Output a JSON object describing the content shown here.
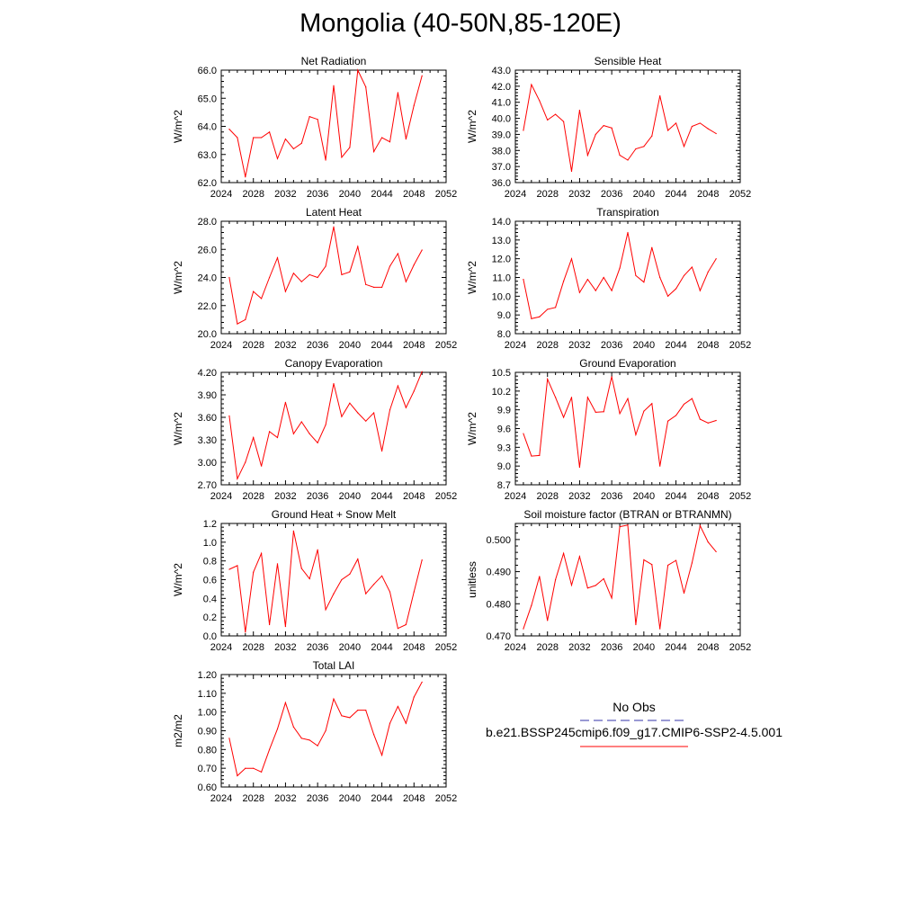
{
  "title": "Mongolia (40-50N,85-120E)",
  "colors": {
    "series": "#ff0000",
    "obs": "#3333aa",
    "axis": "#000000"
  },
  "legend": {
    "obs_label": "No Obs",
    "case_label": "b.e21.BSSP245cmip6.f09_g17.CMIP6-SSP2-4.5.001"
  },
  "chart_data": [
    {
      "type": "line",
      "title": "Net Radiation",
      "ylabel": "W/m^2",
      "xlim": [
        2024,
        2052
      ],
      "xticks": [
        "2024",
        "2028",
        "2032",
        "2036",
        "2040",
        "2044",
        "2048",
        "2052"
      ],
      "ylim": [
        62.0,
        66.0
      ],
      "yticks": [
        "62.0",
        "63.0",
        "64.0",
        "65.0",
        "66.0"
      ],
      "series": [
        {
          "x": [
            2025,
            2026,
            2027,
            2028,
            2029,
            2030,
            2031,
            2032,
            2033,
            2034,
            2035,
            2036,
            2037,
            2038,
            2039,
            2040,
            2041,
            2042,
            2043,
            2044,
            2045,
            2046,
            2047,
            2048,
            2049
          ],
          "values": [
            63.9,
            63.6,
            62.2,
            63.6,
            63.6,
            63.8,
            62.85,
            63.55,
            63.2,
            63.4,
            64.35,
            64.25,
            62.8,
            65.45,
            62.9,
            63.25,
            66.0,
            65.4,
            63.1,
            63.6,
            63.45,
            65.2,
            63.55,
            64.75,
            65.8
          ]
        }
      ]
    },
    {
      "type": "line",
      "title": "Sensible Heat",
      "ylabel": "W/m^2",
      "xlim": [
        2024,
        2052
      ],
      "xticks": [
        "2024",
        "2028",
        "2032",
        "2036",
        "2040",
        "2044",
        "2048",
        "2052"
      ],
      "ylim": [
        36.0,
        43.0
      ],
      "yticks": [
        "36.0",
        "37.0",
        "38.0",
        "39.0",
        "40.0",
        "41.0",
        "42.0",
        "43.0"
      ],
      "series": [
        {
          "x": [
            2025,
            2026,
            2027,
            2028,
            2029,
            2030,
            2031,
            2032,
            2033,
            2034,
            2035,
            2036,
            2037,
            2038,
            2039,
            2040,
            2041,
            2042,
            2043,
            2044,
            2045,
            2046,
            2047,
            2048,
            2049
          ],
          "values": [
            39.25,
            42.1,
            41.1,
            39.9,
            40.25,
            39.8,
            36.7,
            40.5,
            37.7,
            39.0,
            39.55,
            39.4,
            37.7,
            37.4,
            38.1,
            38.25,
            38.9,
            41.4,
            39.25,
            39.7,
            38.25,
            39.5,
            39.7,
            39.35,
            39.05
          ]
        }
      ]
    },
    {
      "type": "line",
      "title": "Latent Heat",
      "ylabel": "W/m^2",
      "xlim": [
        2024,
        2052
      ],
      "xticks": [
        "2024",
        "2028",
        "2032",
        "2036",
        "2040",
        "2044",
        "2048",
        "2052"
      ],
      "ylim": [
        20.0,
        28.0
      ],
      "yticks": [
        "20.0",
        "22.0",
        "24.0",
        "26.0",
        "28.0"
      ],
      "series": [
        {
          "x": [
            2025,
            2026,
            2027,
            2028,
            2029,
            2030,
            2031,
            2032,
            2033,
            2034,
            2035,
            2036,
            2037,
            2038,
            2039,
            2040,
            2041,
            2042,
            2043,
            2044,
            2045,
            2046,
            2047,
            2048,
            2049
          ],
          "values": [
            24.0,
            20.7,
            21.0,
            23.0,
            22.5,
            24.0,
            25.4,
            23.0,
            24.3,
            23.7,
            24.2,
            24.0,
            24.8,
            27.6,
            24.2,
            24.4,
            26.2,
            23.5,
            23.3,
            23.3,
            24.8,
            25.7,
            23.7,
            24.9,
            25.95
          ]
        }
      ]
    },
    {
      "type": "line",
      "title": "Transpiration",
      "ylabel": "W/m^2",
      "xlim": [
        2024,
        2052
      ],
      "xticks": [
        "2024",
        "2028",
        "2032",
        "2036",
        "2040",
        "2044",
        "2048",
        "2052"
      ],
      "ylim": [
        8.0,
        14.0
      ],
      "yticks": [
        "8.0",
        "9.0",
        "10.0",
        "11.0",
        "12.0",
        "13.0",
        "14.0"
      ],
      "series": [
        {
          "x": [
            2025,
            2026,
            2027,
            2028,
            2029,
            2030,
            2031,
            2032,
            2033,
            2034,
            2035,
            2036,
            2037,
            2038,
            2039,
            2040,
            2041,
            2042,
            2043,
            2044,
            2045,
            2046,
            2047,
            2048,
            2049
          ],
          "values": [
            10.9,
            8.8,
            8.9,
            9.3,
            9.4,
            10.8,
            12.0,
            10.2,
            10.9,
            10.3,
            11.0,
            10.3,
            11.5,
            13.4,
            11.1,
            10.75,
            12.6,
            11.0,
            10.0,
            10.4,
            11.1,
            11.55,
            10.3,
            11.3,
            12.0
          ]
        }
      ]
    },
    {
      "type": "line",
      "title": "Canopy Evaporation",
      "ylabel": "W/m^2",
      "xlim": [
        2024,
        2052
      ],
      "xticks": [
        "2024",
        "2028",
        "2032",
        "2036",
        "2040",
        "2044",
        "2048",
        "2052"
      ],
      "ylim": [
        2.7,
        4.2
      ],
      "yticks": [
        "2.70",
        "3.00",
        "3.30",
        "3.60",
        "3.90",
        "4.20"
      ],
      "series": [
        {
          "x": [
            2025,
            2026,
            2027,
            2028,
            2029,
            2030,
            2031,
            2032,
            2033,
            2034,
            2035,
            2036,
            2037,
            2038,
            2039,
            2040,
            2041,
            2042,
            2043,
            2044,
            2045,
            2046,
            2047,
            2048,
            2049
          ],
          "values": [
            3.62,
            2.78,
            3.0,
            3.33,
            2.95,
            3.41,
            3.33,
            3.8,
            3.38,
            3.54,
            3.38,
            3.26,
            3.5,
            4.05,
            3.61,
            3.79,
            3.66,
            3.55,
            3.66,
            3.15,
            3.7,
            4.02,
            3.73,
            3.95,
            4.21
          ]
        }
      ]
    },
    {
      "type": "line",
      "title": "Ground Evaporation",
      "ylabel": "W/m^2",
      "xlim": [
        2024,
        2052
      ],
      "xticks": [
        "2024",
        "2028",
        "2032",
        "2036",
        "2040",
        "2044",
        "2048",
        "2052"
      ],
      "ylim": [
        8.7,
        10.5
      ],
      "yticks": [
        "8.7",
        "9.0",
        "9.3",
        "9.6",
        "9.9",
        "10.2",
        "10.5"
      ],
      "series": [
        {
          "x": [
            2025,
            2026,
            2027,
            2028,
            2029,
            2030,
            2031,
            2032,
            2033,
            2034,
            2035,
            2036,
            2037,
            2038,
            2039,
            2040,
            2041,
            2042,
            2043,
            2044,
            2045,
            2046,
            2047,
            2048,
            2049
          ],
          "values": [
            9.52,
            9.16,
            9.17,
            10.39,
            10.1,
            9.78,
            10.1,
            8.98,
            10.1,
            9.86,
            9.87,
            10.43,
            9.84,
            10.08,
            9.5,
            9.88,
            10.0,
            9.0,
            9.72,
            9.81,
            9.99,
            10.08,
            9.75,
            9.69,
            9.73
          ]
        }
      ]
    },
    {
      "type": "line",
      "title": "Ground Heat + Snow Melt",
      "ylabel": "W/m^2",
      "xlim": [
        2024,
        2052
      ],
      "xticks": [
        "2024",
        "2028",
        "2032",
        "2036",
        "2040",
        "2044",
        "2048",
        "2052"
      ],
      "ylim": [
        0.0,
        1.2
      ],
      "yticks": [
        "0.0",
        "0.2",
        "0.4",
        "0.6",
        "0.8",
        "1.0",
        "1.2"
      ],
      "series": [
        {
          "x": [
            2025,
            2026,
            2027,
            2028,
            2029,
            2030,
            2031,
            2032,
            2033,
            2034,
            2035,
            2036,
            2037,
            2038,
            2039,
            2040,
            2041,
            2042,
            2043,
            2044,
            2045,
            2046,
            2047,
            2048,
            2049
          ],
          "values": [
            0.71,
            0.75,
            0.04,
            0.68,
            0.88,
            0.12,
            0.77,
            0.1,
            1.12,
            0.72,
            0.61,
            0.92,
            0.28,
            0.45,
            0.6,
            0.66,
            0.82,
            0.45,
            0.55,
            0.64,
            0.47,
            0.08,
            0.12,
            0.47,
            0.81
          ]
        }
      ]
    },
    {
      "type": "line",
      "title": "Soil moisture factor (BTRAN or BTRANMN)",
      "ylabel": "unitless",
      "xlim": [
        2024,
        2052
      ],
      "xticks": [
        "2024",
        "2028",
        "2032",
        "2036",
        "2040",
        "2044",
        "2048",
        "2052"
      ],
      "ylim": [
        0.47,
        0.505
      ],
      "yticks": [
        "0.470",
        "0.480",
        "0.490",
        "0.500"
      ],
      "series": [
        {
          "x": [
            2025,
            2026,
            2027,
            2028,
            2029,
            2030,
            2031,
            2032,
            2033,
            2034,
            2035,
            2036,
            2037,
            2038,
            2039,
            2040,
            2041,
            2042,
            2043,
            2044,
            2045,
            2046,
            2047,
            2048,
            2049
          ],
          "values": [
            0.4722,
            0.4795,
            0.4885,
            0.4748,
            0.4875,
            0.4957,
            0.4858,
            0.4947,
            0.4849,
            0.4857,
            0.4878,
            0.4818,
            0.504,
            0.5045,
            0.4735,
            0.4937,
            0.4922,
            0.4722,
            0.492,
            0.4935,
            0.4833,
            0.4927,
            0.5043,
            0.4992,
            0.4962
          ]
        }
      ]
    },
    {
      "type": "line",
      "title": "Total LAI",
      "ylabel": "m2/m2",
      "xlim": [
        2024,
        2052
      ],
      "xticks": [
        "2024",
        "2028",
        "2032",
        "2036",
        "2040",
        "2044",
        "2048",
        "2052"
      ],
      "ylim": [
        0.6,
        1.2
      ],
      "yticks": [
        "0.60",
        "0.70",
        "0.80",
        "0.90",
        "1.00",
        "1.10",
        "1.20"
      ],
      "series": [
        {
          "x": [
            2025,
            2026,
            2027,
            2028,
            2029,
            2030,
            2031,
            2032,
            2033,
            2034,
            2035,
            2036,
            2037,
            2038,
            2039,
            2040,
            2041,
            2042,
            2043,
            2044,
            2045,
            2046,
            2047,
            2048,
            2049
          ],
          "values": [
            0.86,
            0.66,
            0.7,
            0.7,
            0.68,
            0.8,
            0.91,
            1.05,
            0.92,
            0.86,
            0.85,
            0.82,
            0.9,
            1.07,
            0.98,
            0.97,
            1.01,
            1.01,
            0.88,
            0.77,
            0.94,
            1.03,
            0.94,
            1.08,
            1.16
          ]
        }
      ]
    }
  ]
}
